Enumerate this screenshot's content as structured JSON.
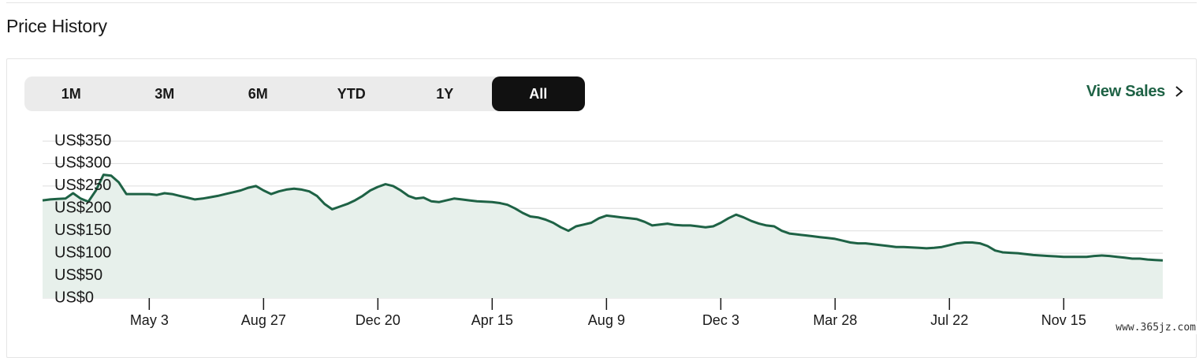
{
  "section": {
    "title": "Price History"
  },
  "range_tabs": [
    "1M",
    "3M",
    "6M",
    "YTD",
    "1Y",
    "All"
  ],
  "active_range": "All",
  "view_sales": {
    "label": "View Sales",
    "icon": "chevron-right-icon"
  },
  "colors": {
    "line": "#1e6245",
    "fill": "#e7f0eb",
    "accent": "#1e6245",
    "active_tab": "#111111"
  },
  "watermark": "www.365jz.com",
  "chart_data": {
    "type": "area",
    "title": "",
    "xlabel": "",
    "ylabel": "",
    "ylim": [
      0,
      350
    ],
    "y_ticks": [
      "US$350",
      "US$300",
      "US$250",
      "US$200",
      "US$150",
      "US$100",
      "US$50",
      "US$0"
    ],
    "y_tick_values": [
      350,
      300,
      250,
      200,
      150,
      100,
      50,
      0
    ],
    "x_tick_labels": [
      "May 3",
      "Aug 27",
      "Dec 20",
      "Apr 15",
      "Aug 9",
      "Dec 3",
      "Mar 28",
      "Jul 22",
      "Nov 15"
    ],
    "x_tick_index": [
      14,
      29,
      44,
      59,
      74,
      89,
      104,
      119,
      134
    ],
    "grid": true,
    "legend": "none",
    "values": [
      218,
      220,
      221,
      222,
      234,
      222,
      215,
      240,
      275,
      273,
      258,
      232,
      232,
      232,
      232,
      230,
      234,
      232,
      228,
      224,
      220,
      222,
      225,
      228,
      232,
      236,
      240,
      246,
      250,
      240,
      232,
      238,
      242,
      244,
      242,
      238,
      228,
      210,
      198,
      204,
      210,
      218,
      228,
      240,
      248,
      254,
      250,
      240,
      228,
      222,
      224,
      216,
      214,
      218,
      222,
      220,
      218,
      216,
      215,
      214,
      212,
      208,
      200,
      190,
      182,
      180,
      175,
      168,
      158,
      150,
      160,
      164,
      168,
      178,
      184,
      182,
      180,
      178,
      176,
      170,
      162,
      164,
      166,
      163,
      162,
      162,
      160,
      158,
      160,
      168,
      178,
      186,
      180,
      172,
      166,
      162,
      160,
      150,
      144,
      142,
      140,
      138,
      136,
      134,
      132,
      128,
      124,
      122,
      122,
      120,
      118,
      116,
      114,
      114,
      113,
      112,
      111,
      112,
      114,
      118,
      122,
      124,
      124,
      122,
      116,
      106,
      102,
      101,
      100,
      98,
      96,
      95,
      94,
      93,
      92,
      92,
      92,
      92,
      94,
      95,
      94,
      92,
      90,
      88,
      88,
      86,
      85,
      84
    ]
  }
}
